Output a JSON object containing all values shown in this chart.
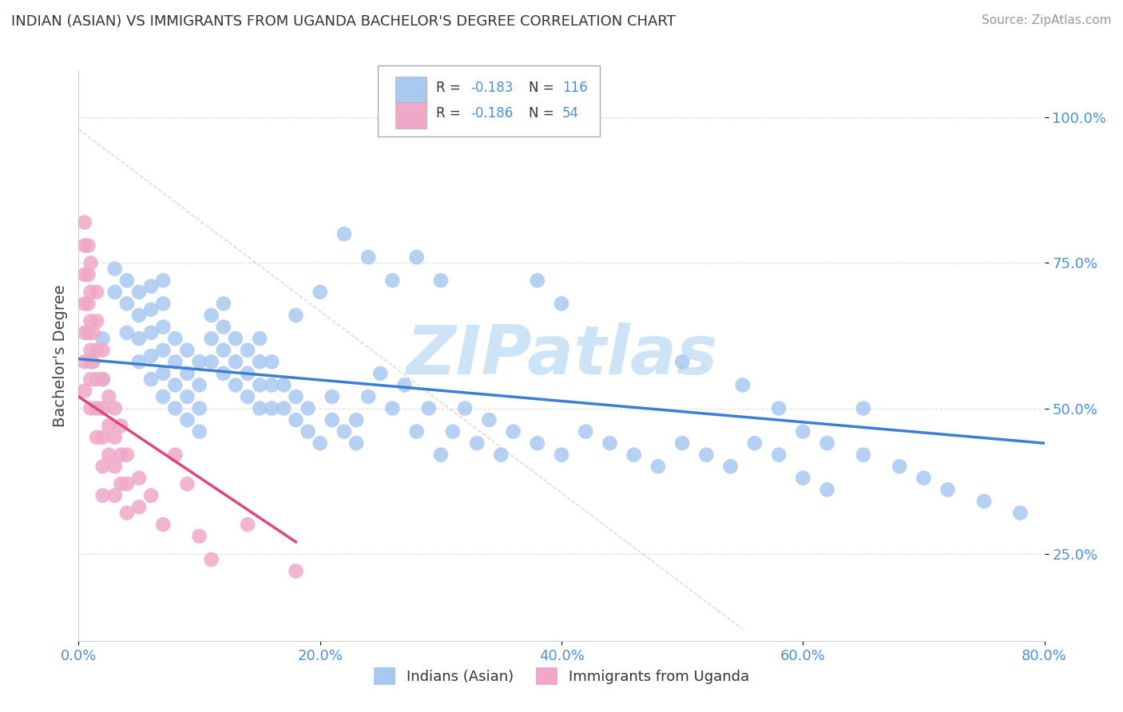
{
  "title": "INDIAN (ASIAN) VS IMMIGRANTS FROM UGANDA BACHELOR'S DEGREE CORRELATION CHART",
  "source": "Source: ZipAtlas.com",
  "ylabel": "Bachelor's Degree",
  "watermark": "ZIPatlas",
  "xlim": [
    0.0,
    0.8
  ],
  "ylim": [
    0.1,
    1.08
  ],
  "xtick_labels": [
    "0.0%",
    "20.0%",
    "40.0%",
    "60.0%",
    "80.0%"
  ],
  "xtick_vals": [
    0.0,
    0.2,
    0.4,
    0.6,
    0.8
  ],
  "ytick_labels": [
    "25.0%",
    "50.0%",
    "75.0%",
    "100.0%"
  ],
  "ytick_vals": [
    0.25,
    0.5,
    0.75,
    1.0
  ],
  "blue_color": "#a8c8f0",
  "pink_color": "#f0a8c8",
  "blue_line_color": "#3a7fd5",
  "pink_line_color": "#d94a7a",
  "legend_label1": "Indians (Asian)",
  "legend_label2": "Immigrants from Uganda",
  "blue_x": [
    0.01,
    0.02,
    0.02,
    0.03,
    0.03,
    0.04,
    0.04,
    0.04,
    0.05,
    0.05,
    0.05,
    0.05,
    0.06,
    0.06,
    0.06,
    0.06,
    0.06,
    0.07,
    0.07,
    0.07,
    0.07,
    0.07,
    0.07,
    0.08,
    0.08,
    0.08,
    0.08,
    0.09,
    0.09,
    0.09,
    0.09,
    0.1,
    0.1,
    0.1,
    0.1,
    0.11,
    0.11,
    0.11,
    0.12,
    0.12,
    0.12,
    0.12,
    0.13,
    0.13,
    0.13,
    0.14,
    0.14,
    0.14,
    0.15,
    0.15,
    0.15,
    0.15,
    0.16,
    0.16,
    0.16,
    0.17,
    0.17,
    0.18,
    0.18,
    0.19,
    0.19,
    0.2,
    0.21,
    0.21,
    0.22,
    0.23,
    0.23,
    0.24,
    0.25,
    0.26,
    0.27,
    0.28,
    0.29,
    0.3,
    0.31,
    0.32,
    0.33,
    0.34,
    0.35,
    0.36,
    0.38,
    0.4,
    0.42,
    0.44,
    0.46,
    0.48,
    0.5,
    0.52,
    0.54,
    0.56,
    0.58,
    0.6,
    0.62,
    0.65,
    0.38,
    0.4,
    0.28,
    0.3,
    0.22,
    0.24,
    0.26,
    0.2,
    0.18,
    0.5,
    0.55,
    0.58,
    0.6,
    0.62,
    0.65,
    0.68,
    0.7,
    0.72,
    0.75,
    0.78
  ],
  "blue_y": [
    0.58,
    0.62,
    0.55,
    0.7,
    0.74,
    0.63,
    0.68,
    0.72,
    0.58,
    0.62,
    0.66,
    0.7,
    0.55,
    0.59,
    0.63,
    0.67,
    0.71,
    0.52,
    0.56,
    0.6,
    0.64,
    0.68,
    0.72,
    0.5,
    0.54,
    0.58,
    0.62,
    0.48,
    0.52,
    0.56,
    0.6,
    0.46,
    0.5,
    0.54,
    0.58,
    0.58,
    0.62,
    0.66,
    0.56,
    0.6,
    0.64,
    0.68,
    0.54,
    0.58,
    0.62,
    0.52,
    0.56,
    0.6,
    0.5,
    0.54,
    0.58,
    0.62,
    0.5,
    0.54,
    0.58,
    0.5,
    0.54,
    0.48,
    0.52,
    0.46,
    0.5,
    0.44,
    0.48,
    0.52,
    0.46,
    0.44,
    0.48,
    0.52,
    0.56,
    0.5,
    0.54,
    0.46,
    0.5,
    0.42,
    0.46,
    0.5,
    0.44,
    0.48,
    0.42,
    0.46,
    0.44,
    0.42,
    0.46,
    0.44,
    0.42,
    0.4,
    0.44,
    0.42,
    0.4,
    0.44,
    0.42,
    0.38,
    0.36,
    0.5,
    0.72,
    0.68,
    0.76,
    0.72,
    0.8,
    0.76,
    0.72,
    0.7,
    0.66,
    0.58,
    0.54,
    0.5,
    0.46,
    0.44,
    0.42,
    0.4,
    0.38,
    0.36,
    0.34,
    0.32
  ],
  "pink_x": [
    0.005,
    0.005,
    0.005,
    0.005,
    0.005,
    0.005,
    0.005,
    0.008,
    0.008,
    0.008,
    0.008,
    0.01,
    0.01,
    0.01,
    0.01,
    0.01,
    0.01,
    0.012,
    0.012,
    0.015,
    0.015,
    0.015,
    0.015,
    0.015,
    0.015,
    0.02,
    0.02,
    0.02,
    0.02,
    0.02,
    0.02,
    0.025,
    0.025,
    0.025,
    0.03,
    0.03,
    0.03,
    0.03,
    0.035,
    0.035,
    0.035,
    0.04,
    0.04,
    0.04,
    0.05,
    0.05,
    0.06,
    0.07,
    0.08,
    0.09,
    0.1,
    0.11,
    0.14,
    0.18
  ],
  "pink_y": [
    0.82,
    0.78,
    0.73,
    0.68,
    0.63,
    0.58,
    0.53,
    0.78,
    0.73,
    0.68,
    0.63,
    0.75,
    0.7,
    0.65,
    0.6,
    0.55,
    0.5,
    0.63,
    0.58,
    0.7,
    0.65,
    0.6,
    0.55,
    0.5,
    0.45,
    0.6,
    0.55,
    0.5,
    0.45,
    0.4,
    0.35,
    0.52,
    0.47,
    0.42,
    0.5,
    0.45,
    0.4,
    0.35,
    0.47,
    0.42,
    0.37,
    0.42,
    0.37,
    0.32,
    0.38,
    0.33,
    0.35,
    0.3,
    0.42,
    0.37,
    0.28,
    0.24,
    0.3,
    0.22
  ],
  "blue_trend_x": [
    0.0,
    0.8
  ],
  "blue_trend_y": [
    0.585,
    0.44
  ],
  "pink_trend_x": [
    0.0,
    0.18
  ],
  "pink_trend_y": [
    0.52,
    0.27
  ],
  "diag_line_x": [
    0.0,
    0.55
  ],
  "diag_line_y": [
    0.98,
    0.12
  ],
  "grid_color": "#dddddd",
  "text_color": "#4a90d9",
  "watermark_color": "#cce4f5",
  "background_color": "#ffffff"
}
